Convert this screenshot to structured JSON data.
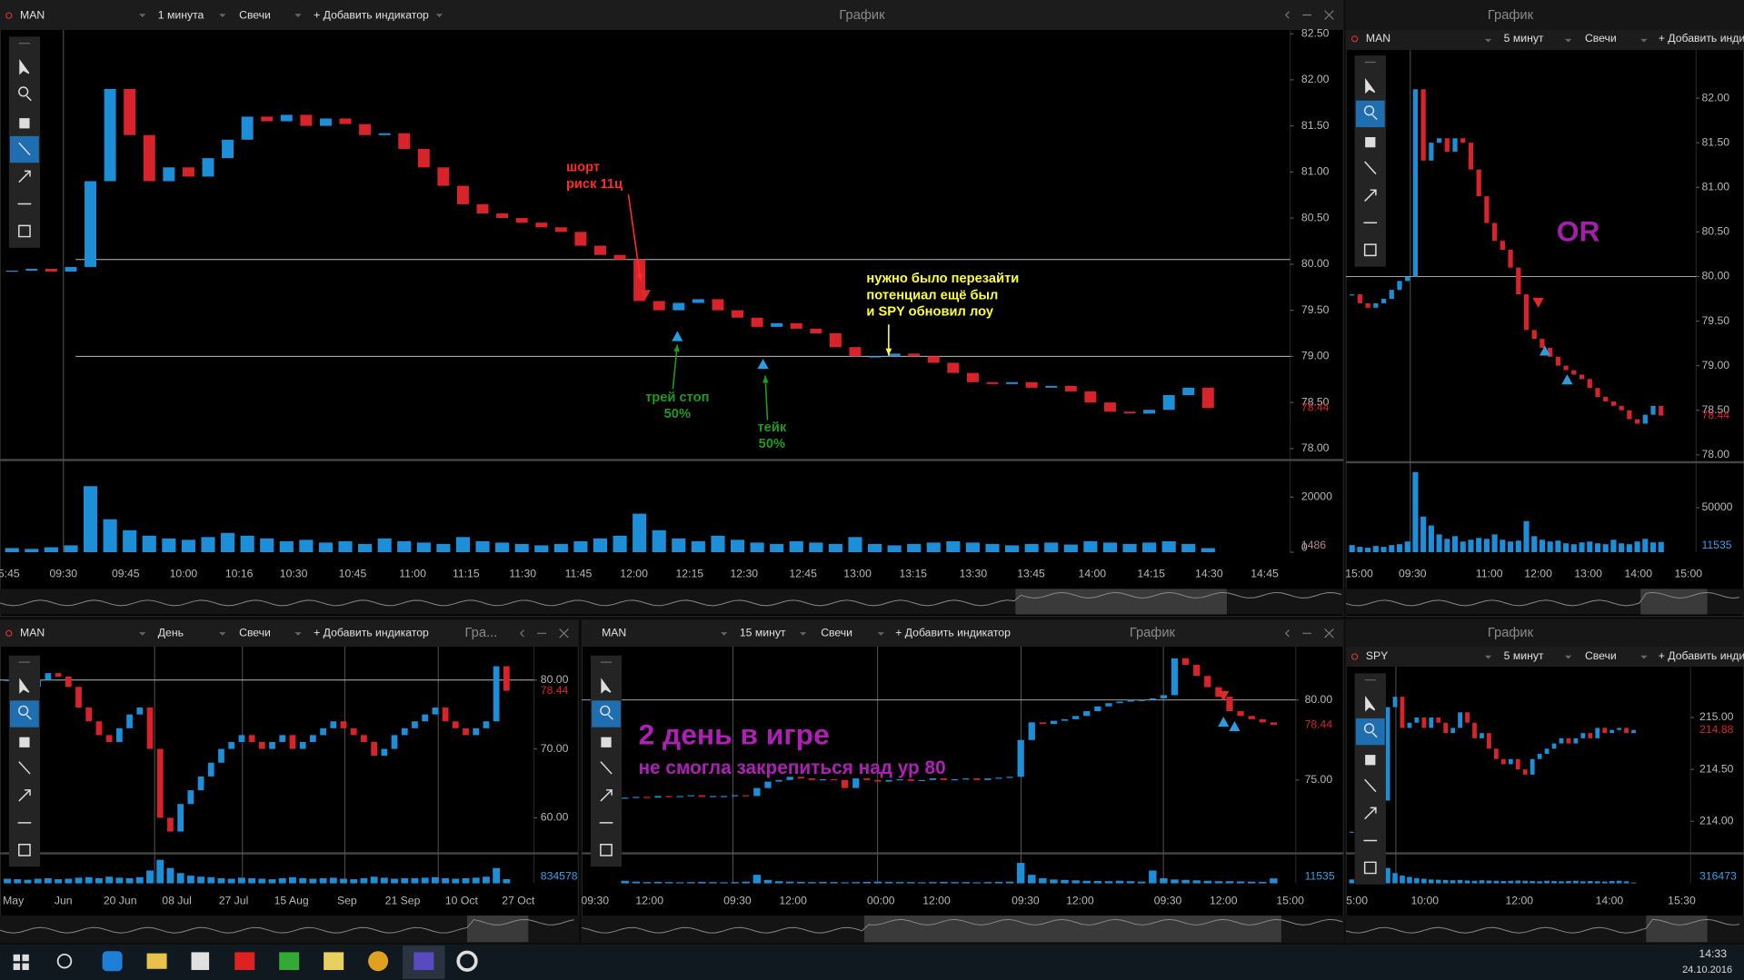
{
  "panels": [
    {
      "toolbar": {
        "symbol": "MAN",
        "interval": "1 минута",
        "style": "Свечи",
        "indicator": "+ Добавить индикатор",
        "title": "График"
      },
      "chart": {
        "type": "candlestick",
        "closes": [
          79.93,
          79.95,
          79.92,
          79.97,
          80.9,
          81.9,
          81.4,
          80.9,
          81.05,
          80.95,
          81.15,
          81.35,
          81.6,
          81.55,
          81.62,
          81.5,
          81.58,
          81.52,
          81.4,
          81.42,
          81.25,
          81.05,
          80.85,
          80.65,
          80.55,
          80.5,
          80.45,
          80.4,
          80.35,
          80.2,
          80.1,
          80.05,
          79.6,
          79.5,
          79.58,
          79.62,
          79.5,
          79.42,
          79.32,
          79.36,
          79.3,
          79.25,
          79.1,
          79.0,
          79.0,
          79.03,
          79.0,
          78.93,
          78.82,
          78.72,
          78.7,
          78.72,
          78.66,
          78.68,
          78.62,
          78.5,
          78.4,
          78.38,
          78.42,
          78.58,
          78.66,
          78.44
        ],
        "volumes": [
          1500,
          1200,
          1800,
          2500,
          24000,
          12000,
          8000,
          6000,
          5000,
          4500,
          5500,
          7000,
          6000,
          5000,
          4000,
          4500,
          3500,
          4000,
          3000,
          5000,
          4000,
          3500,
          3000,
          5500,
          4000,
          3500,
          3000,
          2500,
          3000,
          4000,
          5000,
          6000,
          14000,
          8000,
          5000,
          4000,
          6000,
          4500,
          3500,
          3000,
          4000,
          3500,
          3000,
          5500,
          3000,
          2500,
          3000,
          3500,
          4000,
          3500,
          3000,
          2500,
          3000,
          3500,
          2800,
          4000,
          3500,
          3000,
          3500,
          4000,
          3000,
          1486
        ],
        "ylim": [
          77.9,
          82.54
        ],
        "yticks": [
          {
            "value": 82.5,
            "label": "82.50"
          },
          {
            "value": 82,
            "label": "82.00"
          },
          {
            "value": 81.5,
            "label": "81.50"
          },
          {
            "value": 81,
            "label": "81.00"
          },
          {
            "value": 80.5,
            "label": "80.50"
          },
          {
            "value": 80,
            "label": "80.00"
          },
          {
            "value": 79.5,
            "label": "79.50"
          },
          {
            "value": 79,
            "label": "79.00"
          },
          {
            "value": 78.5,
            "label": "78.50"
          },
          {
            "value": 78,
            "label": "78.00"
          }
        ],
        "vol_ylim": [
          0,
          31900
        ],
        "vol_ticks": [
          20000,
          0
        ],
        "xticks": [
          "5:45",
          "09:30",
          "09:45",
          "10:00",
          "10:16",
          "10:30",
          "10:45",
          "11:00",
          "11:15",
          "11:30",
          "11:45",
          "12:00",
          "12:15",
          "12:30",
          "12:45",
          "13:00",
          "13:15",
          "13:30",
          "13:45",
          "14:00",
          "14:15",
          "14:30",
          "14:45"
        ],
        "levels": [
          80.05,
          79.0
        ],
        "annotations": [
          {
            "lines": [
              "шорт",
              "риск 11ц"
            ],
            "color": "#ff2a2a"
          },
          {
            "lines": [
              "трей стоп",
              "50%"
            ],
            "color": "#1f9a1f"
          },
          {
            "lines": [
              "тейк",
              "50%"
            ],
            "color": "#1f9a1f"
          },
          {
            "lines": [
              "нужно было перезайти",
              "потенциал ещё был",
              "и SPY обновил лоу"
            ],
            "color": "#ffff33"
          }
        ]
      }
    },
    {
      "toolbar": {
        "title": "График",
        "symbol": "MAN",
        "interval": "5 минут",
        "style": "Свечи",
        "indicator": "+ Добавить инди"
      },
      "chart": {
        "type": "candlestick",
        "closes": [
          79.8,
          79.7,
          79.65,
          79.7,
          79.75,
          79.85,
          79.95,
          80.0,
          82.1,
          81.3,
          81.5,
          81.55,
          81.4,
          81.55,
          81.5,
          81.2,
          80.9,
          80.6,
          80.4,
          80.3,
          80.1,
          79.8,
          79.4,
          79.3,
          79.2,
          79.1,
          79.0,
          78.95,
          78.9,
          78.85,
          78.75,
          78.65,
          78.6,
          78.55,
          78.5,
          78.4,
          78.35,
          78.45,
          78.55,
          78.44
        ],
        "volumes": [
          8000,
          6000,
          5000,
          7000,
          6000,
          8000,
          9000,
          12000,
          90000,
          40000,
          30000,
          20000,
          15000,
          18000,
          12000,
          14000,
          16000,
          15000,
          20000,
          14000,
          12000,
          13000,
          35000,
          18000,
          14000,
          12000,
          13000,
          10000,
          9000,
          11000,
          12000,
          10000,
          9000,
          14000,
          10000,
          9000,
          12000,
          15000,
          11000,
          11535
        ],
        "ylim": [
          77.93,
          82.54
        ],
        "yticks": [
          {
            "value": 82,
            "label": "82.00"
          },
          {
            "value": 81.5,
            "label": "81.50"
          },
          {
            "value": 81,
            "label": "81.00"
          },
          {
            "value": 80.5,
            "label": "80.50"
          },
          {
            "value": 80,
            "label": "80.00"
          },
          {
            "value": 79.5,
            "label": "79.50"
          },
          {
            "value": 79,
            "label": "79.00"
          },
          {
            "value": 78.5,
            "label": "78.50"
          },
          {
            "value": 78,
            "label": "78.00"
          }
        ],
        "vol_ylim": [
          0,
          96000
        ],
        "vol_ticks": [
          50000
        ],
        "xticks": [
          "15:00",
          "09:30",
          "11:00",
          "12:00",
          "13:00",
          "14:00",
          "15:00"
        ],
        "levels": [
          80.0
        ],
        "annotations": [
          {
            "lines": [
              "OR"
            ],
            "color": "#a21fa8"
          }
        ]
      }
    },
    {
      "toolbar": {
        "symbol": "MAN",
        "interval": "День",
        "style": "Свечи",
        "indicator": "+ Добавить индикатор",
        "title": "Гра..."
      },
      "chart": {
        "type": "candlestick",
        "closes": [
          80,
          80.5,
          79,
          80,
          81,
          80.5,
          79,
          76,
          74,
          72,
          71,
          73,
          75,
          76,
          70,
          60,
          58,
          62,
          64,
          66,
          68,
          70,
          71,
          72,
          71,
          70,
          71,
          72,
          70,
          71,
          72,
          73,
          74,
          73,
          72,
          71,
          69,
          70,
          72,
          73,
          74,
          75,
          76,
          74,
          73,
          72,
          73,
          74,
          82,
          78.44
        ],
        "volumes": [
          900000,
          800000,
          700000,
          900000,
          1000000,
          800000,
          900000,
          1100000,
          1200000,
          1000000,
          1300000,
          1100000,
          1000000,
          1200000,
          2500000,
          4600000,
          3000000,
          2000000,
          1500000,
          1300000,
          1200000,
          1000000,
          900000,
          1100000,
          1000000,
          900000,
          800000,
          1000000,
          1200000,
          1000000,
          900000,
          1000000,
          1100000,
          900000,
          800000,
          1000000,
          1300000,
          1100000,
          900000,
          1000000,
          1000000,
          1100000,
          1200000,
          1000000,
          900000,
          1000000,
          1100000,
          1300000,
          3000000,
          834578
        ],
        "ylim": [
          54.84,
          84.84
        ],
        "yticks": [
          {
            "value": 80,
            "label": "80.00"
          },
          {
            "value": 70,
            "label": "70.00"
          },
          {
            "value": 60,
            "label": "60.00"
          }
        ],
        "vol_ylim": [
          0,
          5000000
        ],
        "vol_ticks": [],
        "xticks": [
          "May",
          "Jun",
          "20 Jun",
          "08 Jul",
          "27 Jul",
          "15 Aug",
          "Sep",
          "21 Sep",
          "10 Oct",
          "27 Oct"
        ],
        "levels": [
          80.0
        ],
        "annotations": []
      }
    },
    {
      "toolbar": {
        "symbol": "MAN",
        "interval": "15 минут",
        "style": "Свечи",
        "indicator": "+ Добавить индикатор",
        "title": "График"
      },
      "chart": {
        "type": "candlestick",
        "closes": [
          73.9,
          73.95,
          73.9,
          74.0,
          73.95,
          74.0,
          74.05,
          73.95,
          74.0,
          74.0,
          74.05,
          74.0,
          74.5,
          74.9,
          75.0,
          75.2,
          75.1,
          75.0,
          75.05,
          75.0,
          74.5,
          75.1,
          75.0,
          74.9,
          75.0,
          75.05,
          74.95,
          75.0,
          75.1,
          75.0,
          75.05,
          75.1,
          75.0,
          75.1,
          75.15,
          75.2,
          77.5,
          78.6,
          78.5,
          78.7,
          78.8,
          79.0,
          79.3,
          79.6,
          79.8,
          79.9,
          80.0,
          80.0,
          80.1,
          80.3,
          82.6,
          82.2,
          81.5,
          80.8,
          80.2,
          79.3,
          79.0,
          78.8,
          78.6,
          78.44
        ],
        "volumes": [
          6000,
          4000,
          3000,
          3500,
          3000,
          2500,
          3000,
          3500,
          3000,
          2500,
          3000,
          4000,
          20000,
          8000,
          5000,
          4000,
          3500,
          3000,
          3500,
          3000,
          2500,
          3000,
          3500,
          4000,
          3500,
          3000,
          3000,
          2500,
          3000,
          3500,
          3000,
          3000,
          2500,
          3000,
          3500,
          4000,
          48000,
          20000,
          12000,
          9000,
          8000,
          7000,
          6000,
          5500,
          5000,
          6000,
          5000,
          4000,
          30000,
          12000,
          9000,
          8000,
          7000,
          6000,
          5000,
          5000,
          4500,
          4000,
          3500,
          11535
        ],
        "ylim": [
          70.42,
          83.33
        ],
        "yticks": [
          {
            "value": 80,
            "label": "80.00"
          },
          {
            "value": 75,
            "label": "75.00"
          }
        ],
        "vol_ylim": [
          0,
          60000
        ],
        "vol_ticks": [],
        "xticks": [
          "09:30",
          "12:00",
          "09:30",
          "12:00",
          "00:00",
          "12:00",
          "09:30",
          "12:00",
          "09:30",
          "12:00",
          "15:00"
        ],
        "levels": [
          80.0
        ],
        "annotations": [
          {
            "lines": [
              "2 день в игре"
            ],
            "color": "#b01fb5"
          },
          {
            "lines": [
              "не смогла закрепиться над ур 80"
            ],
            "color": "#b01fb5"
          }
        ]
      }
    },
    {
      "toolbar": {
        "title": "График",
        "symbol": "SPY",
        "interval": "5 минут",
        "style": "Свечи",
        "indicator": "+ Добавить инди"
      },
      "chart": {
        "type": "candlestick",
        "closes": [
          213.9,
          213.95,
          214.0,
          214.1,
          214.2,
          215.1,
          215.2,
          214.9,
          214.95,
          215.0,
          214.9,
          215.0,
          214.95,
          214.85,
          214.9,
          215.05,
          214.95,
          214.8,
          214.85,
          214.7,
          214.6,
          214.55,
          214.6,
          214.5,
          214.45,
          214.6,
          214.65,
          214.7,
          214.75,
          214.8,
          214.75,
          214.8,
          214.85,
          214.8,
          214.9,
          214.85,
          214.88,
          214.9,
          214.85,
          214.88
        ],
        "volumes": [
          1500000,
          1200000,
          1000000,
          1400000,
          2000000,
          6000000,
          4000000,
          3000000,
          2500000,
          2000000,
          1800000,
          1500000,
          1400000,
          1300000,
          1200000,
          1300000,
          1100000,
          1000000,
          1200000,
          1100000,
          1000000,
          900000,
          1000000,
          1100000,
          1000000,
          900000,
          800000,
          1000000,
          900000,
          800000,
          900000,
          1000000,
          800000,
          900000,
          800000,
          700000,
          900000,
          1000000,
          800000,
          316473
        ],
        "ylim": [
          213.67,
          215.49
        ],
        "yticks": [
          {
            "value": 215,
            "label": "215.00"
          },
          {
            "value": 214.5,
            "label": "214.50"
          },
          {
            "value": 214,
            "label": "214.00"
          }
        ],
        "vol_ylim": [
          0,
          10000000
        ],
        "vol_ticks": [],
        "xticks": [
          "5:00",
          "10:00",
          "12:00",
          "14:00",
          "15:30"
        ],
        "levels": [],
        "annotations": []
      }
    }
  ],
  "taskbar": {
    "time": "14:33",
    "date": "24.10.2016"
  }
}
